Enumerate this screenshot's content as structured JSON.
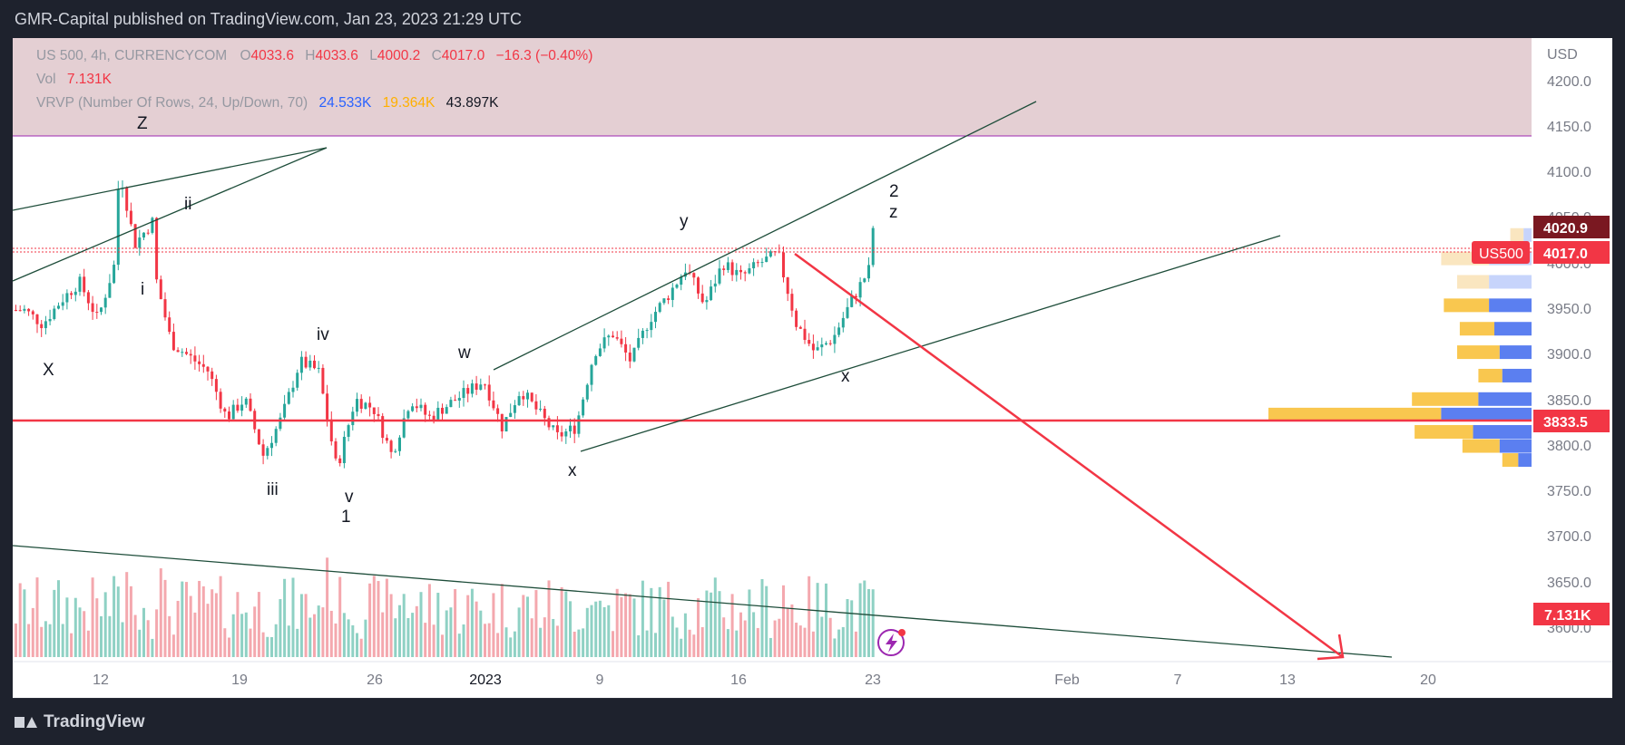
{
  "header": {
    "published": "GMR-Capital published on TradingView.com, Jan 23, 2023 21:29 UTC"
  },
  "legend": {
    "symbol": "US 500, 4h, CURRENCYCOM",
    "o_label": "O",
    "o_value": "4033.6",
    "h_label": "H",
    "h_value": "4033.6",
    "l_label": "L",
    "l_value": "4000.2",
    "c_label": "C",
    "c_value": "4017.0",
    "change": "−16.3 (−0.40%)",
    "vol_label": "Vol",
    "vol_value": "7.131K",
    "vrvp_label": "VRVP (Number Of Rows, 24, Up/Down, 70)",
    "vrvp_up": "24.533K",
    "vrvp_down": "19.364K",
    "vrvp_total": "43.897K"
  },
  "price_axis": {
    "currency": "USD",
    "ticks": [
      "4200.0",
      "4150.0",
      "4100.0",
      "4050.0",
      "4000.0",
      "3950.0",
      "3900.0",
      "3850.0",
      "3800.0",
      "3750.0",
      "3700.0",
      "3650.0",
      "3600.0"
    ],
    "badges": {
      "high_marker": "4020.9",
      "symbol_tag": "US500",
      "last_price": "4017.0",
      "level": "3833.5",
      "volume": "7.131K"
    }
  },
  "time_axis": {
    "ticks": [
      "12",
      "19",
      "26",
      "2023",
      "9",
      "16",
      "23",
      "Feb",
      "7",
      "13",
      "20"
    ]
  },
  "wave_labels": [
    "Z",
    "ii",
    "i",
    "X",
    "iv",
    "iii",
    "v",
    "1",
    "w",
    "y",
    "x",
    "2",
    "z",
    "x"
  ],
  "colors": {
    "up": "#26a69a",
    "down": "#f23645",
    "up_volume": "#8fd1c4",
    "down_volume": "#f4a8ae",
    "supply_zone": "#e4cfd3",
    "level_line": "#f23645",
    "trendline": "#1e4d3a",
    "background": "#1e222d"
  },
  "chart_data": {
    "type": "candlestick",
    "symbol": "US 500",
    "timeframe": "4h",
    "y_range": [
      3570,
      4235
    ],
    "last": {
      "open": 4033.6,
      "high": 4033.6,
      "low": 4000.2,
      "close": 4017.0,
      "change": -16.3,
      "change_pct": -0.4
    },
    "path": [
      {
        "date": "Dec 8",
        "price": 3945
      },
      {
        "date": "Dec 9",
        "price": 3930
      },
      {
        "date": "Dec 10",
        "price": 3955
      },
      {
        "date": "Dec 11",
        "price": 3975
      },
      {
        "date": "Dec 12",
        "price": 3935
      },
      {
        "date": "Dec 13",
        "price": 4000
      },
      {
        "date": "Dec 13",
        "price": 4100
      },
      {
        "date": "Dec 14",
        "price": 4015
      },
      {
        "date": "Dec 15",
        "price": 4040
      },
      {
        "date": "Dec 15",
        "price": 3980
      },
      {
        "date": "Dec 16",
        "price": 3910
      },
      {
        "date": "Dec 18",
        "price": 3880
      },
      {
        "date": "Dec 19",
        "price": 3830
      },
      {
        "date": "Dec 20",
        "price": 3850
      },
      {
        "date": "Dec 21",
        "price": 3790
      },
      {
        "date": "Dec 22",
        "price": 3830
      },
      {
        "date": "Dec 23",
        "price": 3890
      },
      {
        "date": "Dec 24",
        "price": 3880
      },
      {
        "date": "Dec 25",
        "price": 3775
      },
      {
        "date": "Dec 26",
        "price": 3850
      },
      {
        "date": "Dec 27",
        "price": 3840
      },
      {
        "date": "Dec 28",
        "price": 3790
      },
      {
        "date": "Dec 29",
        "price": 3850
      },
      {
        "date": "Dec 30",
        "price": 3830
      },
      {
        "date": "Jan 2",
        "price": 3870
      },
      {
        "date": "Jan 3",
        "price": 3820
      },
      {
        "date": "Jan 4",
        "price": 3860
      },
      {
        "date": "Jan 6",
        "price": 3810
      },
      {
        "date": "Jan 7",
        "price": 3820
      },
      {
        "date": "Jan 8",
        "price": 3900
      },
      {
        "date": "Jan 9",
        "price": 3920
      },
      {
        "date": "Jan 10",
        "price": 3890
      },
      {
        "date": "Jan 11",
        "price": 3935
      },
      {
        "date": "Jan 12",
        "price": 3960
      },
      {
        "date": "Jan 13",
        "price": 3990
      },
      {
        "date": "Jan 14",
        "price": 3950
      },
      {
        "date": "Jan 15",
        "price": 3995
      },
      {
        "date": "Jan 16",
        "price": 3980
      },
      {
        "date": "Jan 17",
        "price": 3995
      },
      {
        "date": "Jan 18",
        "price": 4005
      },
      {
        "date": "Jan 19",
        "price": 3930
      },
      {
        "date": "Jan 20",
        "price": 3900
      },
      {
        "date": "Jan 21",
        "price": 3915
      },
      {
        "date": "Jan 22",
        "price": 3955
      },
      {
        "date": "Jan 23",
        "price": 3990
      },
      {
        "date": "Jan 23",
        "price": 4033
      }
    ],
    "volume_profile": [
      {
        "price": 4025,
        "up": 3,
        "down": 5
      },
      {
        "price": 4000,
        "up": 16,
        "down": 18
      },
      {
        "price": 3975,
        "up": 16,
        "down": 12
      },
      {
        "price": 3950,
        "up": 16,
        "down": 17
      },
      {
        "price": 3925,
        "up": 14,
        "down": 13
      },
      {
        "price": 3900,
        "up": 12,
        "down": 16
      },
      {
        "price": 3875,
        "up": 11,
        "down": 9
      },
      {
        "price": 3850,
        "up": 20,
        "down": 25
      },
      {
        "price": 3833.5,
        "up": 34,
        "down": 65
      },
      {
        "price": 3815,
        "up": 22,
        "down": 22
      },
      {
        "price": 3800,
        "up": 12,
        "down": 14
      },
      {
        "price": 3785,
        "up": 5,
        "down": 6
      }
    ],
    "horizontal_levels": [
      4020.9,
      4017.0,
      3833.5
    ],
    "projection": {
      "from": {
        "date": "Jan 19",
        "price": 4014
      },
      "to": {
        "date": "Feb 15",
        "price": 3590
      }
    }
  }
}
